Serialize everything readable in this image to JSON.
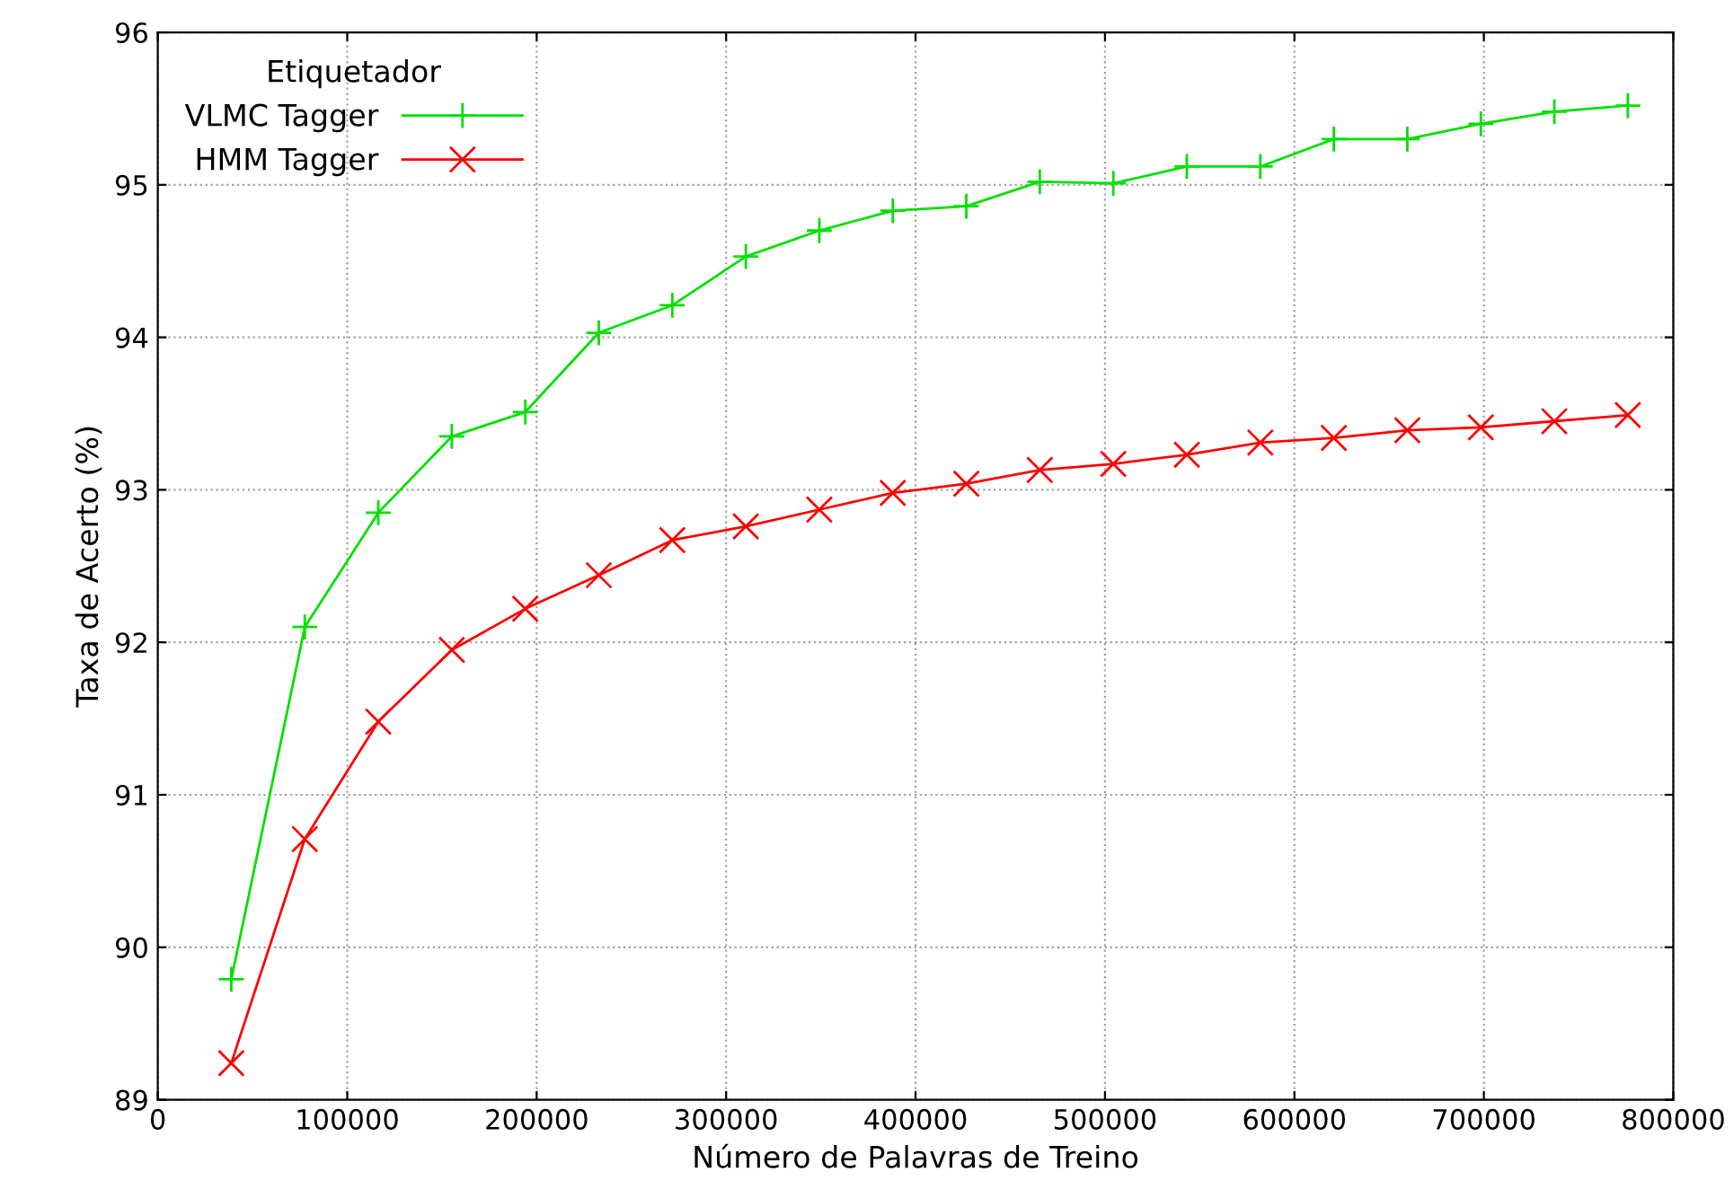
{
  "chart_data": {
    "type": "line",
    "xlabel": "Número de Palavras de Treino",
    "ylabel": "Taxa de Acerto (%)",
    "legend_title": "Etiquetador",
    "legend": "top left",
    "grid": true,
    "xlim": [
      0,
      800000
    ],
    "xticks": [
      0,
      100000,
      200000,
      300000,
      400000,
      500000,
      600000,
      700000,
      800000
    ],
    "ylim": [
      89,
      96
    ],
    "yticks": [
      89,
      90,
      91,
      92,
      93,
      94,
      95,
      96
    ],
    "x": [
      38800,
      77600,
      116400,
      155200,
      194000,
      232800,
      271600,
      310400,
      349200,
      388000,
      426800,
      465600,
      504400,
      543200,
      582000,
      620800,
      659600,
      698400,
      737200,
      776000
    ],
    "series": [
      {
        "name": "VLMC Tagger",
        "color": "#00e000",
        "marker": "plus",
        "values": [
          89.79,
          92.1,
          92.85,
          93.35,
          93.51,
          94.03,
          94.21,
          94.53,
          94.7,
          94.83,
          94.86,
          95.02,
          95.01,
          95.12,
          95.12,
          95.3,
          95.3,
          95.4,
          95.48,
          95.52
        ]
      },
      {
        "name": "HMM Tagger",
        "color": "#ff0000",
        "marker": "cross",
        "values": [
          89.24,
          90.71,
          91.48,
          91.95,
          92.22,
          92.44,
          92.67,
          92.76,
          92.87,
          92.98,
          93.04,
          93.13,
          93.17,
          93.23,
          93.31,
          93.34,
          93.39,
          93.41,
          93.45,
          93.49
        ]
      }
    ]
  }
}
